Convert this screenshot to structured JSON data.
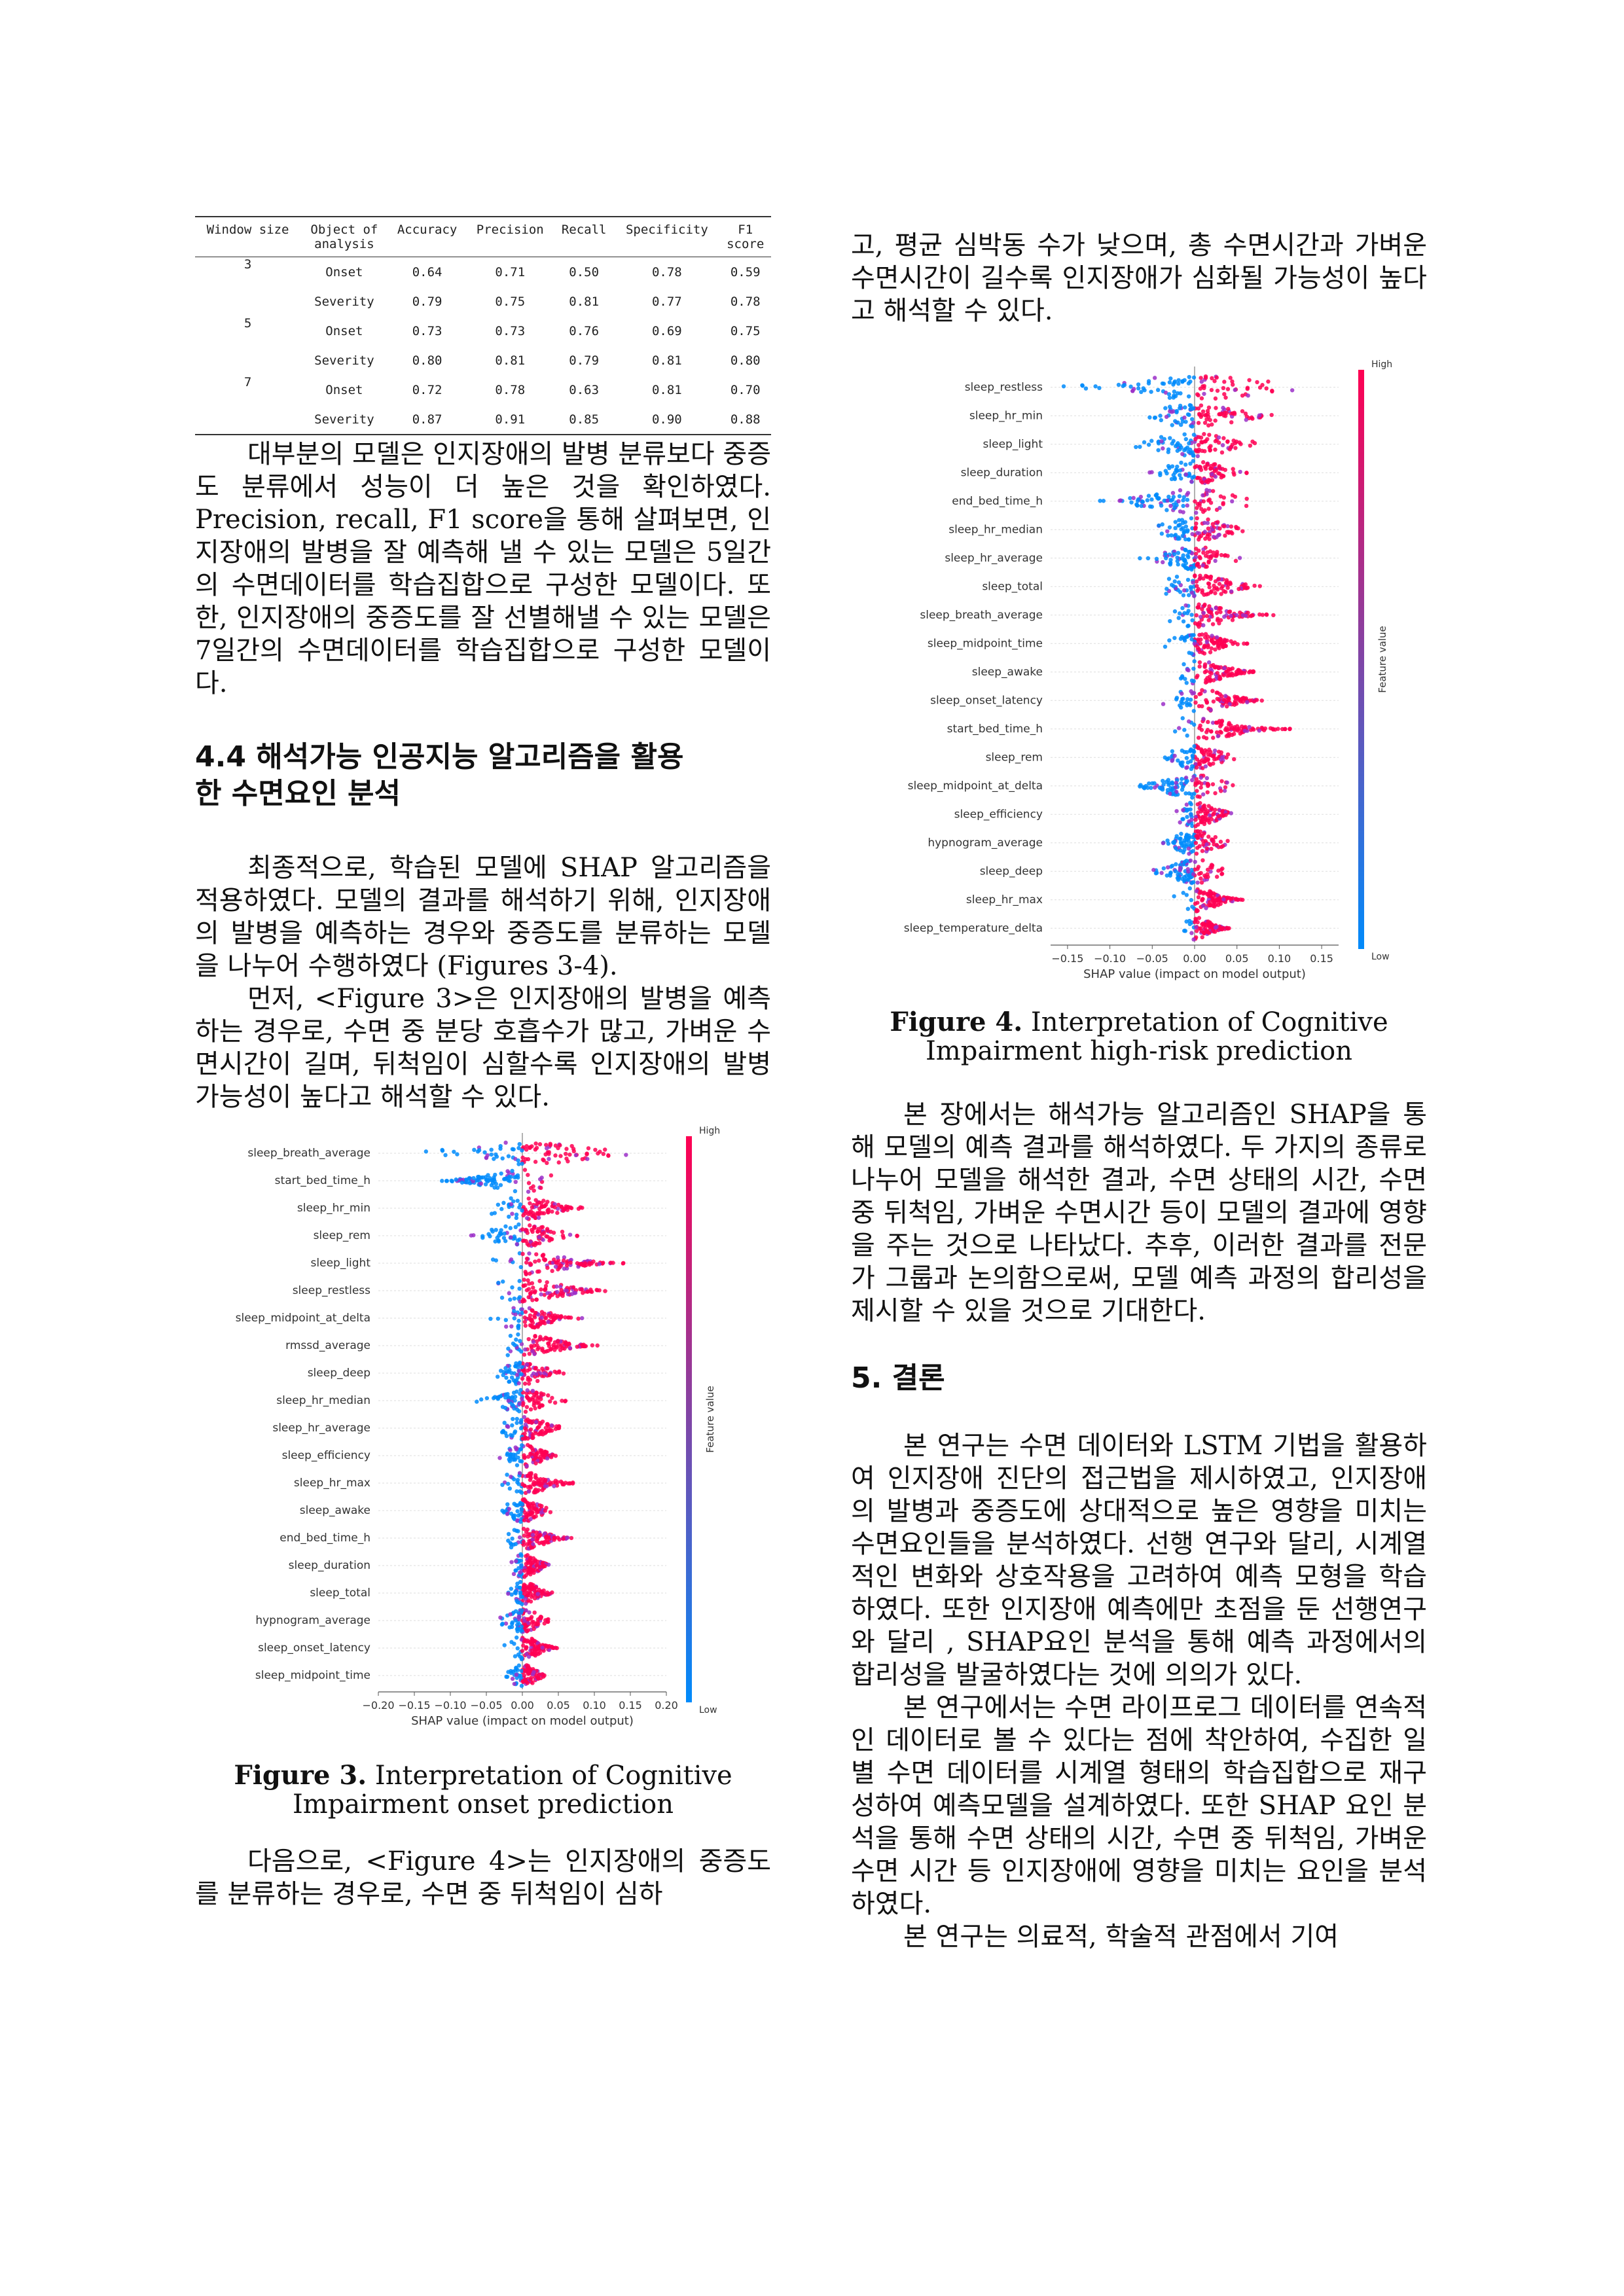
{
  "table": {
    "headers": [
      "Window size",
      "Object of\nanalysis",
      "Accuracy",
      "Precision",
      "Recall",
      "Specificity",
      "F1\nscore"
    ],
    "rows": [
      [
        "3",
        "Onset",
        "0.64",
        "0.71",
        "0.50",
        "0.78",
        "0.59"
      ],
      [
        "",
        "Severity",
        "0.79",
        "0.75",
        "0.81",
        "0.77",
        "0.78"
      ],
      [
        "5",
        "Onset",
        "0.73",
        "0.73",
        "0.76",
        "0.69",
        "0.75"
      ],
      [
        "",
        "Severity",
        "0.80",
        "0.81",
        "0.79",
        "0.81",
        "0.80"
      ],
      [
        "7",
        "Onset",
        "0.72",
        "0.78",
        "0.63",
        "0.81",
        "0.70"
      ],
      [
        "",
        "Severity",
        "0.87",
        "0.91",
        "0.85",
        "0.90",
        "0.88"
      ]
    ]
  },
  "left": {
    "p1": "대부분의 모델은 인지장애의 발병 분류보다 중증도 분류에서 성능이 더 높은 것을 확인하였다. Precision, recall, F1 score을 통해 살펴보면, 인지장애의 발병을 잘 예측해 낼 수 있는 모델은 5일간의 수면데이터를 학습집합으로 구성한 모델이다. 또한, 인지장애의 중증도를 잘 선별해낼 수 있는 모델은 7일간의 수면데이터를 학습집합으로 구성한 모델이다.",
    "h44": "4.4 해석가능 인공지능 알고리즘을 활용\n한 수면요인 분석",
    "p2": "최종적으로, 학습된 모델에 SHAP 알고리즘을 적용하였다. 모델의 결과를 해석하기 위해, 인지장애의 발병을 예측하는 경우와 중증도를 분류하는 모델을 나누어 수행하였다 (Figures 3-4).",
    "p3": "먼저, <Figure 3>은 인지장애의 발병을 예측하는 경우로, 수면 중 분당 호흡수가 많고, 가벼운 수면시간이 길며, 뒤척임이 심할수록 인지장애의 발병 가능성이 높다고 해석할 수 있다.",
    "fig3_label": "Figure 3.",
    "fig3_text": " Interpretation of Cognitive\nImpairment onset prediction",
    "p4": "다음으로, <Figure 4>는 인지장애의 중증도를 분류하는 경우로, 수면 중 뒤척임이 심하"
  },
  "right": {
    "p0": "고, 평균 심박동 수가 낮으며, 총 수면시간과 가벼운 수면시간이 길수록 인지장애가 심화될 가능성이 높다고 해석할 수 있다.",
    "fig4_label": "Figure 4.",
    "fig4_text": " Interpretation of Cognitive\nImpairment high-risk prediction",
    "p1": "본 장에서는 해석가능 알고리즘인 SHAP을 통해 모델의 예측 결과를 해석하였다. 두 가지의 종류로 나누어 모델을 해석한 결과, 수면 상태의 시간, 수면 중 뒤척임, 가벼운 수면시간 등이 모델의 결과에 영향을 주는 것으로 나타났다. 추후, 이러한 결과를 전문가 그룹과 논의함으로써, 모델 예측 과정의 합리성을 제시할 수 있을 것으로 기대한다.",
    "h5": "5. 결론",
    "p2": "본 연구는 수면 데이터와 LSTM 기법을 활용하여 인지장애 진단의 접근법을 제시하였고, 인지장애의 발병과 중증도에 상대적으로 높은 영향을 미치는 수면요인들을 분석하였다. 선행 연구와 달리, 시계열적인 변화와 상호작용을 고려하여 예측 모형을 학습하였다. 또한 인지장애 예측에만 초점을 둔 선행연구와 달리 , SHAP요인 분석을 통해 예측 과정에서의 합리성을 발굴하였다는 것에 의의가 있다.",
    "p3": "본 연구에서는 수면 라이프로그 데이터를 연속적인 데이터로 볼 수 있다는 점에 착안하여, 수집한 일별 수면 데이터를 시계열 형태의 학습집합으로 재구성하여 예측모델을 설계하였다. 또한 SHAP 요인 분석을 통해 수면 상태의 시간, 수면 중 뒤척임, 가벼운 수면 시간 등 인지장애에 영향을 미치는 요인을 분석하였다.",
    "p4": "본 연구는 의료적, 학술적 관점에서 기여"
  },
  "chart_data": [
    {
      "type": "scatter",
      "features": [
        "sleep_breath_average",
        "start_bed_time_h",
        "sleep_hr_min",
        "sleep_rem",
        "sleep_light",
        "sleep_restless",
        "sleep_midpoint_at_delta",
        "rmssd_average",
        "sleep_deep",
        "sleep_hr_median",
        "sleep_hr_average",
        "sleep_efficiency",
        "sleep_hr_max",
        "sleep_awake",
        "end_bed_time_h",
        "sleep_duration",
        "sleep_total",
        "hypnogram_average",
        "sleep_onset_latency",
        "sleep_midpoint_time"
      ],
      "x_ticks": [
        "−0.20",
        "−0.15",
        "−0.10",
        "−0.05",
        "0.00",
        "0.05",
        "0.10",
        "0.15",
        "0.20"
      ],
      "xlim": [
        -0.2,
        0.2
      ],
      "spread": [
        [
          -0.16,
          0.19
        ],
        [
          -0.14,
          0.06
        ],
        [
          -0.07,
          0.1
        ],
        [
          -0.08,
          0.1
        ],
        [
          -0.06,
          0.17
        ],
        [
          -0.06,
          0.15
        ],
        [
          -0.05,
          0.09
        ],
        [
          -0.05,
          0.13
        ],
        [
          -0.05,
          0.07
        ],
        [
          -0.07,
          0.07
        ],
        [
          -0.05,
          0.07
        ],
        [
          -0.04,
          0.06
        ],
        [
          -0.04,
          0.09
        ],
        [
          -0.04,
          0.05
        ],
        [
          -0.04,
          0.08
        ],
        [
          -0.03,
          0.05
        ],
        [
          -0.03,
          0.05
        ],
        [
          -0.04,
          0.05
        ],
        [
          -0.03,
          0.06
        ],
        [
          -0.03,
          0.04
        ]
      ],
      "xlabel": "SHAP value (impact on model output)",
      "colorbar_label": "Feature value",
      "colorbar_high": "High",
      "colorbar_low": "Low",
      "colors": {
        "high": "#ff0052",
        "low": "#008bfb"
      }
    },
    {
      "type": "scatter",
      "features": [
        "sleep_restless",
        "sleep_hr_min",
        "sleep_light",
        "sleep_duration",
        "end_bed_time_h",
        "sleep_hr_median",
        "sleep_hr_average",
        "sleep_total",
        "sleep_breath_average",
        "sleep_midpoint_time",
        "sleep_awake",
        "sleep_onset_latency",
        "start_bed_time_h",
        "sleep_rem",
        "sleep_midpoint_at_delta",
        "sleep_efficiency",
        "hypnogram_average",
        "sleep_deep",
        "sleep_hr_max",
        "sleep_temperature_delta"
      ],
      "x_ticks": [
        "−0.15",
        "−0.10",
        "−0.05",
        "0.00",
        "0.05",
        "0.10",
        "0.15"
      ],
      "xlim": [
        -0.17,
        0.17
      ],
      "spread": [
        [
          -0.18,
          0.16
        ],
        [
          -0.08,
          0.11
        ],
        [
          -0.1,
          0.09
        ],
        [
          -0.06,
          0.08
        ],
        [
          -0.13,
          0.09
        ],
        [
          -0.06,
          0.08
        ],
        [
          -0.07,
          0.06
        ],
        [
          -0.06,
          0.1
        ],
        [
          -0.05,
          0.11
        ],
        [
          -0.04,
          0.07
        ],
        [
          -0.04,
          0.09
        ],
        [
          -0.05,
          0.1
        ],
        [
          -0.04,
          0.14
        ],
        [
          -0.05,
          0.06
        ],
        [
          -0.09,
          0.06
        ],
        [
          -0.04,
          0.06
        ],
        [
          -0.05,
          0.05
        ],
        [
          -0.06,
          0.05
        ],
        [
          -0.03,
          0.07
        ],
        [
          -0.02,
          0.05
        ]
      ],
      "xlabel": "SHAP value (impact on model output)",
      "colorbar_label": "Feature value",
      "colorbar_high": "High",
      "colorbar_low": "Low",
      "colors": {
        "high": "#ff0052",
        "low": "#008bfb"
      }
    }
  ]
}
